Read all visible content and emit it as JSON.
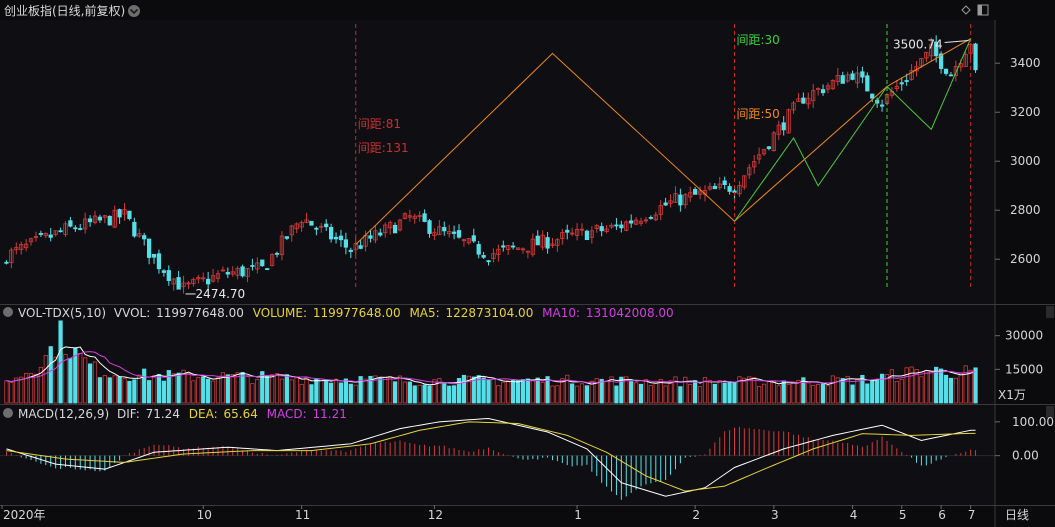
{
  "header": {
    "title": "创业板指(日线,前复权)",
    "vol_name": "VOL-TDX(5,10)",
    "vvol_label": "VVOL:",
    "vvol_value": "119977648.00",
    "volume_label": "VOLUME:",
    "volume_value": "119977648.00",
    "ma5_label": "MA5:",
    "ma5_value": "122873104.00",
    "ma10_label": "MA10:",
    "ma10_value": "131042008.00",
    "macd_name": "MACD(12,26,9)",
    "dif_label": "DIF:",
    "dif_value": "71.24",
    "dea_label": "DEA:",
    "dea_value": "65.64",
    "macd_label": "MACD:",
    "macd_value": "11.21",
    "volume_unit": "X1万",
    "period": "日线"
  },
  "colors": {
    "up": "#d23a3a",
    "down": "#54e0e8",
    "ma5": "#ffffff",
    "ma10": "#d040e0",
    "dif": "#ffffff",
    "dea": "#e8d23a",
    "orange_line": "#f08a1a",
    "green_line": "#4cc93c",
    "red_dash": "#c82828",
    "green_dash": "#4cc93c"
  },
  "chart_data": [
    {
      "type": "candlestick",
      "title": "创业板指(日线,前复权)",
      "ylim": [
        2450,
        3560
      ],
      "y_ticks": [
        2600,
        2800,
        3000,
        3200,
        3400
      ],
      "x_ticks": [
        "2020年",
        "10",
        "11",
        "12",
        "1",
        "2",
        "3",
        "4",
        "5",
        "6",
        "7"
      ],
      "n_bars": 198,
      "price_path": [
        [
          0,
          2615
        ],
        [
          12,
          2720
        ],
        [
          24,
          2780
        ],
        [
          30,
          2600
        ],
        [
          36,
          2480
        ],
        [
          44,
          2540
        ],
        [
          52,
          2560
        ],
        [
          60,
          2770
        ],
        [
          70,
          2640
        ],
        [
          82,
          2770
        ],
        [
          98,
          2620
        ],
        [
          116,
          2700
        ],
        [
          124,
          2730
        ],
        [
          136,
          2840
        ],
        [
          148,
          2900
        ],
        [
          162,
          3260
        ],
        [
          172,
          3360
        ],
        [
          178,
          3240
        ],
        [
          188,
          3450
        ],
        [
          192,
          3360
        ],
        [
          196,
          3490
        ],
        [
          197,
          3350
        ]
      ],
      "annotations": [
        {
          "text": "2474.70",
          "kind": "low"
        },
        {
          "text": "3500.74",
          "kind": "high"
        },
        {
          "text": "间距:81",
          "color": "#c83030"
        },
        {
          "text": "间距:131",
          "color": "#c83030"
        },
        {
          "text": "间距:30",
          "color": "#3ad23a"
        },
        {
          "text": "间距:50",
          "color": "#f08a1a"
        }
      ],
      "orange_line": [
        [
          71,
          2660
        ],
        [
          111,
          3440
        ],
        [
          148,
          2755
        ],
        [
          179,
          3305
        ],
        [
          196,
          3500
        ]
      ],
      "green_line": [
        [
          148,
          2755
        ],
        [
          160,
          3095
        ],
        [
          165,
          2900
        ],
        [
          179,
          3305
        ],
        [
          188,
          3130
        ],
        [
          196,
          3500
        ]
      ]
    },
    {
      "type": "bar",
      "title": "VOL-TDX(5,10)",
      "unit": "X1万",
      "ylim": [
        0,
        37000
      ],
      "y_ticks": [
        15000,
        30000
      ],
      "volume_path": [
        [
          0,
          9000
        ],
        [
          4,
          14000
        ],
        [
          8,
          20000
        ],
        [
          11,
          30000
        ],
        [
          14,
          22000
        ],
        [
          18,
          15000
        ],
        [
          22,
          13000
        ],
        [
          30,
          12000
        ],
        [
          40,
          12000
        ],
        [
          60,
          11000
        ],
        [
          80,
          10000
        ],
        [
          100,
          10000
        ],
        [
          120,
          10000
        ],
        [
          140,
          9500
        ],
        [
          160,
          9500
        ],
        [
          176,
          10500
        ],
        [
          186,
          14500
        ],
        [
          196,
          13500
        ]
      ]
    },
    {
      "type": "line",
      "title": "MACD(12,26,9)",
      "ylim": [
        -140,
        135
      ],
      "y_ticks": [
        0,
        100
      ],
      "series": [
        {
          "name": "DIF",
          "values_path": [
            [
              0,
              20
            ],
            [
              10,
              -25
            ],
            [
              20,
              -40
            ],
            [
              30,
              10
            ],
            [
              45,
              25
            ],
            [
              55,
              15
            ],
            [
              70,
              35
            ],
            [
              80,
              80
            ],
            [
              88,
              100
            ],
            [
              98,
              110
            ],
            [
              110,
              70
            ],
            [
              118,
              20
            ],
            [
              125,
              -80
            ],
            [
              134,
              -120
            ],
            [
              142,
              -95
            ],
            [
              148,
              -35
            ],
            [
              158,
              20
            ],
            [
              168,
              60
            ],
            [
              178,
              90
            ],
            [
              186,
              45
            ],
            [
              196,
              75
            ]
          ]
        },
        {
          "name": "DEA",
          "values_path": [
            [
              0,
              15
            ],
            [
              12,
              -10
            ],
            [
              24,
              -20
            ],
            [
              36,
              5
            ],
            [
              50,
              15
            ],
            [
              62,
              15
            ],
            [
              74,
              35
            ],
            [
              84,
              75
            ],
            [
              94,
              100
            ],
            [
              104,
              95
            ],
            [
              114,
              60
            ],
            [
              122,
              10
            ],
            [
              130,
              -60
            ],
            [
              138,
              -105
            ],
            [
              146,
              -90
            ],
            [
              154,
              -40
            ],
            [
              164,
              20
            ],
            [
              174,
              65
            ],
            [
              184,
              60
            ],
            [
              196,
              66
            ]
          ]
        }
      ]
    }
  ]
}
